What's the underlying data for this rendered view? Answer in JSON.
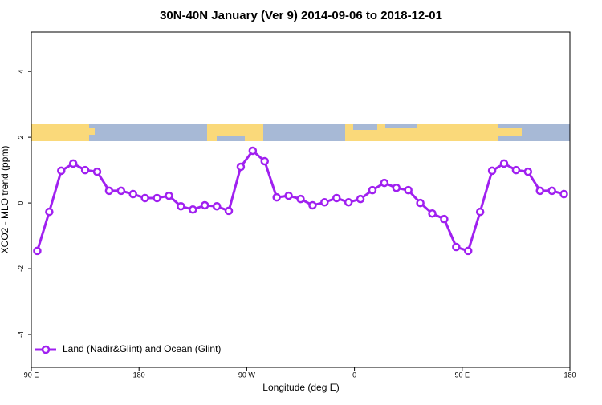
{
  "chart_data": {
    "type": "line",
    "title": "30N-40N January (Ver 9)   2014-09-06 to 2018-12-01",
    "x_label": "Longitude (deg E)",
    "y_label": "XCO2 - MLO trend (ppm)",
    "xlim": [
      90,
      540
    ],
    "xticks": [
      {
        "value": 90,
        "label": "90 E"
      },
      180,
      {
        "value": 270,
        "label": "90 W"
      },
      {
        "value": 360,
        "label": "0"
      },
      {
        "value": 450,
        "label": "90 E"
      },
      {
        "value": 540,
        "label": "180"
      }
    ],
    "ylim": [
      -5,
      5.2
    ],
    "yticks": [
      -4,
      -2,
      0,
      2,
      4
    ],
    "legend_position": "bottomleft",
    "x": [
      95,
      105,
      115,
      125,
      135,
      145,
      155,
      165,
      175,
      185,
      195,
      205,
      215,
      225,
      235,
      245,
      255,
      265,
      275,
      285,
      295,
      305,
      315,
      325,
      335,
      345,
      355,
      365,
      375,
      385,
      395,
      405,
      415,
      425,
      435,
      445,
      455,
      465,
      475,
      485,
      495,
      505,
      515,
      525,
      535
    ],
    "series": [
      {
        "name": "Land (Nadir&Glint) and Ocean (Glint)",
        "color": "#a020f0",
        "values": [
          -1.46,
          -0.27,
          0.98,
          1.2,
          1.0,
          0.95,
          0.37,
          0.37,
          0.27,
          0.15,
          0.15,
          0.22,
          -0.1,
          -0.2,
          -0.07,
          -0.1,
          -0.24,
          1.1,
          1.59,
          1.27,
          0.17,
          0.22,
          0.12,
          -0.07,
          0.02,
          0.15,
          0.02,
          0.12,
          0.39,
          0.61,
          0.46,
          0.39,
          0.0,
          -0.32,
          -0.49,
          -1.34,
          -1.46,
          -0.27,
          0.98,
          1.2,
          1.0,
          0.95,
          0.37,
          0.37,
          0.27
        ]
      }
    ]
  }
}
